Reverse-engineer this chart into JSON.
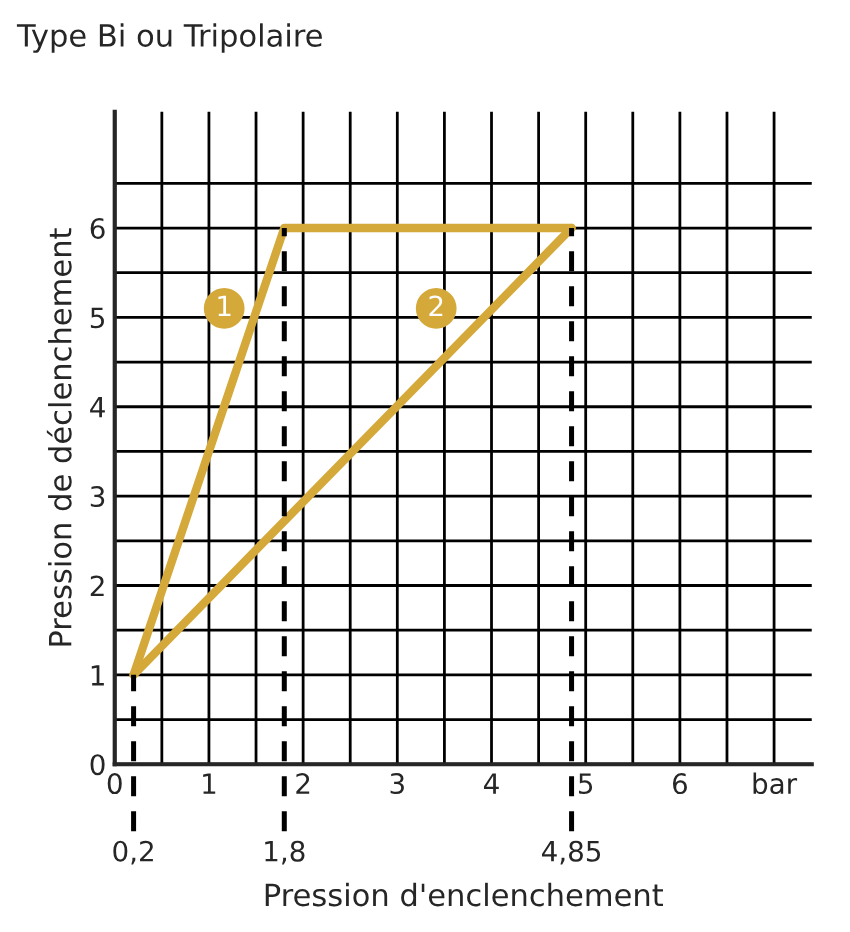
{
  "chart_data": {
    "type": "line",
    "title": "Type Bi ou Tripolaire",
    "xlabel": "Pression d'enclenchement",
    "ylabel": "Pression de déclenchement",
    "series": [
      {
        "name": "1",
        "color": "#d4a93a",
        "x": [
          0.2,
          1.8,
          4.85
        ],
        "values": [
          1,
          6,
          6
        ]
      },
      {
        "name": "2",
        "color": "#d4a93a",
        "x": [
          0.2,
          4.85
        ],
        "values": [
          1,
          6
        ]
      }
    ],
    "xlim": [
      0,
      7.4
    ],
    "ylim": [
      0,
      7.3
    ],
    "xticks": [
      0,
      {
        "value": 0.5,
        "label": null
      },
      1,
      {
        "value": 1.5,
        "label": null
      },
      2,
      {
        "value": 2.5,
        "label": null
      },
      3,
      {
        "value": 3.5,
        "label": null
      },
      4,
      {
        "value": 4.5,
        "label": null
      },
      5,
      {
        "value": 5.5,
        "label": null
      },
      6,
      {
        "value": 6.5,
        "label": null
      },
      {
        "value": 7,
        "label": "bar"
      }
    ],
    "yticks": [
      0,
      {
        "value": 0.5,
        "label": null
      },
      1,
      {
        "value": 1.5,
        "label": null
      },
      2,
      {
        "value": 2.5,
        "label": null
      },
      3,
      {
        "value": 3.5,
        "label": null
      },
      4,
      {
        "value": 4.5,
        "label": null
      },
      5,
      {
        "value": 5.5,
        "label": null
      },
      6,
      {
        "value": 6.5,
        "label": null
      }
    ],
    "grid": true,
    "ref_lines": [
      {
        "axis": "x",
        "value": 0.2,
        "label": "0,2",
        "line_style": "dashed"
      },
      {
        "axis": "x",
        "value": 1.8,
        "label": "1,8",
        "line_style": "dashed"
      },
      {
        "axis": "x",
        "value": 4.85,
        "label": "4,85",
        "line_style": "dashed"
      }
    ]
  }
}
